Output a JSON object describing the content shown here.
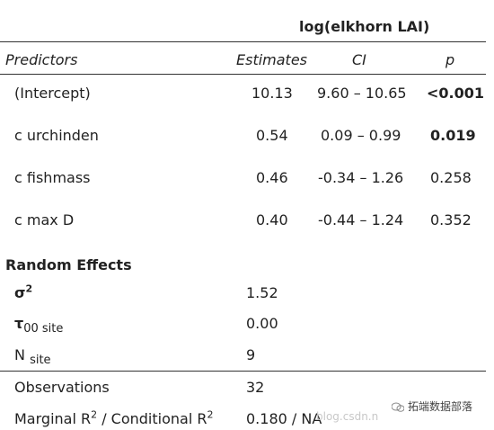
{
  "table": {
    "dv_header": "log(elkhorn LAI)",
    "columns": {
      "predictors": "Predictors",
      "estimates": "Estimates",
      "ci": "CI",
      "p": "p"
    },
    "rows": [
      {
        "predictor": "(Intercept)",
        "estimate": "10.13",
        "ci": "9.60 – 10.65",
        "p": "<0.001",
        "p_bold": true
      },
      {
        "predictor": "c urchinden",
        "estimate": "0.54",
        "ci": "0.09 – 0.99",
        "p": "0.019",
        "p_bold": true
      },
      {
        "predictor": "c fishmass",
        "estimate": "0.46",
        "ci": "-0.34 – 1.26",
        "p": "0.258",
        "p_bold": false
      },
      {
        "predictor": "c max D",
        "estimate": "0.40",
        "ci": "-0.44 – 1.24",
        "p": "0.352",
        "p_bold": false
      }
    ],
    "random_effects": {
      "title": "Random Effects",
      "sigma_symbol": "σ",
      "sigma_sup": "2",
      "sigma_value": "1.52",
      "tau_symbol": "τ",
      "tau_sub": "00 site",
      "tau_value": "0.00",
      "n_symbol": "N",
      "n_sub": "site",
      "n_value": "9"
    },
    "fit": {
      "obs_label": "Observations",
      "obs_value": "32",
      "r2_part1": "Marginal R",
      "r2_sup1": "2",
      "r2_part2": " / Conditional R",
      "r2_sup2": "2",
      "r2_value": "0.180 / NA"
    }
  },
  "watermark": {
    "url_text": "blog.csdn.n",
    "brand_text": "拓端数据部落"
  }
}
